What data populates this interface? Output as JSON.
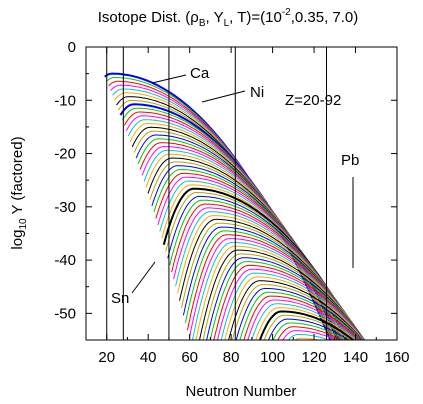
{
  "chart_data": {
    "type": "line",
    "title_prefix": "Isotope Dist. (",
    "title_rho": "ρ",
    "title_rho_sub": "B",
    "title_mid": ", Y",
    "title_y_sub": "L",
    "title_mid2": ", T)=(10",
    "title_exp": "-2",
    "title_suffix": ",0.35, 7.0)",
    "xlabel": "Neutron Number",
    "ylabel_prefix": "log",
    "ylabel_sub": "10",
    "ylabel_suffix": " Y (factored)",
    "xlim": [
      10,
      160
    ],
    "ylim": [
      -55,
      0
    ],
    "x_ticks": [
      20,
      40,
      60,
      80,
      100,
      120,
      140,
      160
    ],
    "y_ticks": [
      0,
      -10,
      -20,
      -30,
      -40,
      -50
    ],
    "magic_numbers": [
      20,
      28,
      50,
      82,
      126
    ],
    "z_range": [
      20,
      92
    ],
    "series_step": -0.72,
    "series_colors": [
      "#0000ff",
      "#00cc00",
      "#ff0000",
      "#ff00ff",
      "#00cccc",
      "#ffaa00",
      "#000000",
      "#aaaa00"
    ],
    "annotations": [
      {
        "name": "annotation-ca",
        "text": "Ca"
      },
      {
        "name": "annotation-ni",
        "text": "Ni"
      },
      {
        "name": "annotation-z-range",
        "text": "Z=20-92"
      },
      {
        "name": "annotation-pb",
        "text": "Pb"
      },
      {
        "name": "annotation-sn",
        "text": "Sn"
      }
    ]
  }
}
